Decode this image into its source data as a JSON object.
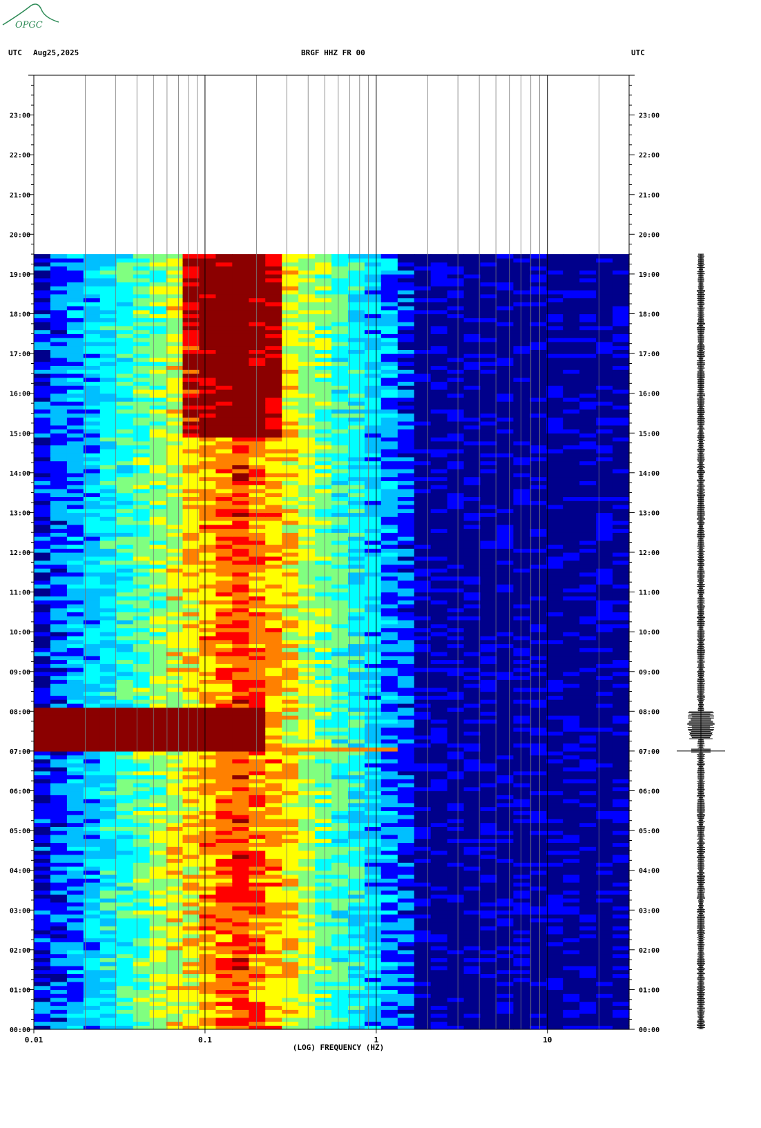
{
  "header": {
    "left_tz": "UTC",
    "date": "Aug25,2025",
    "station": "BRGF HHZ FR 00",
    "right_tz": "UTC"
  },
  "logo": {
    "text": "OPGC",
    "color": "#2e8b57"
  },
  "chart_data": {
    "type": "heatmap",
    "title": "BRGF HHZ FR 00",
    "xlabel": "(LOG) FREQUENCY (HZ)",
    "ylabel": "",
    "x_scale": "log",
    "xlim": [
      0.01,
      30
    ],
    "ylim_hours": [
      0,
      24
    ],
    "x_tick_labels": [
      {
        "value": 0.01,
        "label": "0.01"
      },
      {
        "value": 0.1,
        "label": "0.1"
      },
      {
        "value": 1,
        "label": "1"
      },
      {
        "value": 10,
        "label": "10"
      }
    ],
    "y_tick_labels": [
      "00:00",
      "01:00",
      "02:00",
      "03:00",
      "04:00",
      "05:00",
      "06:00",
      "07:00",
      "08:00",
      "09:00",
      "10:00",
      "11:00",
      "12:00",
      "13:00",
      "14:00",
      "15:00",
      "16:00",
      "17:00",
      "18:00",
      "19:00",
      "20:00",
      "21:00",
      "22:00",
      "23:00"
    ],
    "data_end_time": "19:30",
    "event_time": "07:00",
    "event_band_hours": [
      6.97,
      8.0
    ],
    "microseism_peak_hz": 0.14,
    "colormap": [
      "#00008b",
      "#0000ff",
      "#00bfff",
      "#00ffff",
      "#80ff80",
      "#ffff00",
      "#ff8000",
      "#ff0000",
      "#8b0000"
    ]
  }
}
